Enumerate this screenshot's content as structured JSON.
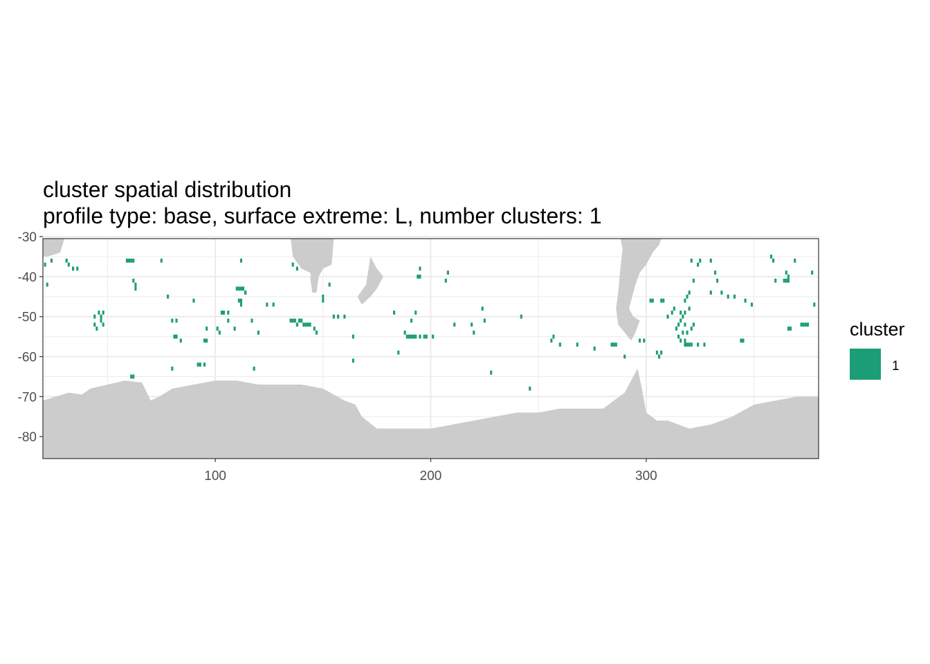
{
  "chart_data": {
    "type": "heatmap",
    "title": "cluster spatial distribution",
    "subtitle": "profile type: base, surface extreme: L, number clusters: 1",
    "xlabel": "",
    "ylabel": "",
    "xlim": [
      20,
      380
    ],
    "ylim": [
      -85.5,
      -30.5
    ],
    "x_ticks": [
      100,
      200,
      300
    ],
    "x_tick_labels": [
      "100",
      "200",
      "300"
    ],
    "y_ticks": [
      -30,
      -40,
      -50,
      -60,
      -70,
      -80
    ],
    "y_tick_labels": [
      "-30",
      "-40",
      "-50",
      "-60",
      "-70",
      "-80"
    ],
    "grid": true,
    "theme": "bw",
    "cell_size": [
      1,
      1
    ],
    "land_color": "#cccccc",
    "legend": {
      "title": "cluster",
      "position": "right",
      "entries": [
        {
          "label": "1",
          "color": "#1b9e77"
        }
      ]
    },
    "land_profile": {
      "antarctica_north_edge": [
        [
          20,
          -71
        ],
        [
          26,
          -70
        ],
        [
          32,
          -69
        ],
        [
          38,
          -69.5
        ],
        [
          42,
          -68
        ],
        [
          50,
          -67
        ],
        [
          58,
          -66
        ],
        [
          66,
          -66.5
        ],
        [
          70,
          -71
        ],
        [
          74,
          -70
        ],
        [
          80,
          -68
        ],
        [
          90,
          -67
        ],
        [
          100,
          -66
        ],
        [
          110,
          -66
        ],
        [
          120,
          -67
        ],
        [
          130,
          -67
        ],
        [
          140,
          -67
        ],
        [
          150,
          -68
        ],
        [
          160,
          -71
        ],
        [
          165,
          -72
        ],
        [
          168,
          -75
        ],
        [
          175,
          -78
        ],
        [
          185,
          -78
        ],
        [
          200,
          -78
        ],
        [
          210,
          -77
        ],
        [
          220,
          -76
        ],
        [
          230,
          -75
        ],
        [
          240,
          -74
        ],
        [
          250,
          -74
        ],
        [
          260,
          -73
        ],
        [
          270,
          -73
        ],
        [
          280,
          -73
        ],
        [
          285,
          -71
        ],
        [
          290,
          -69
        ],
        [
          294,
          -65
        ],
        [
          296,
          -63
        ],
        [
          298,
          -68
        ],
        [
          300,
          -74
        ],
        [
          305,
          -76
        ],
        [
          310,
          -76
        ],
        [
          315,
          -77
        ],
        [
          320,
          -78
        ],
        [
          330,
          -77
        ],
        [
          340,
          -75
        ],
        [
          350,
          -72
        ],
        [
          360,
          -71
        ],
        [
          370,
          -70
        ],
        [
          380,
          -70
        ]
      ],
      "landmasses": [
        {
          "name": "africa",
          "points": [
            [
              20,
              -30.5
            ],
            [
              30,
              -30.5
            ],
            [
              28,
              -34
            ],
            [
              22,
              -35
            ],
            [
              20,
              -35
            ]
          ]
        },
        {
          "name": "australia",
          "points": [
            [
              135,
              -30.5
            ],
            [
              155,
              -30.5
            ],
            [
              154,
              -37
            ],
            [
              150,
              -38
            ],
            [
              148,
              -40
            ],
            [
              146,
              -43
            ],
            [
              144,
              -39
            ],
            [
              140,
              -38
            ],
            [
              136,
              -35
            ]
          ]
        },
        {
          "name": "new-zealand",
          "points": [
            [
              172,
              -35
            ],
            [
              175,
              -38
            ],
            [
              178,
              -40
            ],
            [
              175,
              -43
            ],
            [
              172,
              -45
            ],
            [
              168,
              -47
            ],
            [
              166,
              -45
            ],
            [
              170,
              -42
            ]
          ]
        },
        {
          "name": "south-america",
          "points": [
            [
              288,
              -30.5
            ],
            [
              307,
              -30.5
            ],
            [
              306,
              -32
            ],
            [
              303,
              -34
            ],
            [
              300,
              -37
            ],
            [
              297,
              -39
            ],
            [
              295,
              -42
            ],
            [
              293,
              -46
            ],
            [
              292,
              -48
            ],
            [
              294,
              -50
            ],
            [
              297,
              -51
            ],
            [
              295,
              -54
            ],
            [
              293,
              -56
            ],
            [
              290,
              -54
            ],
            [
              287,
              -52
            ],
            [
              286,
              -48
            ],
            [
              287,
              -44
            ],
            [
              288,
              -38
            ],
            [
              289,
              -33
            ]
          ]
        },
        {
          "name": "tasmania-south",
          "points": [
            [
              144,
              -40
            ],
            [
              148,
              -40
            ],
            [
              147,
              -44
            ],
            [
              145,
              -44
            ]
          ]
        }
      ]
    },
    "cluster_cells": {
      "cluster": "1",
      "color": "#1b9e77",
      "points": [
        [
          21,
          -37
        ],
        [
          22,
          -42
        ],
        [
          24,
          -36
        ],
        [
          31,
          -36
        ],
        [
          32,
          -37
        ],
        [
          34,
          -38
        ],
        [
          36,
          -38
        ],
        [
          44,
          -50
        ],
        [
          44,
          -52
        ],
        [
          45,
          -53
        ],
        [
          46,
          -49
        ],
        [
          47,
          -50
        ],
        [
          47,
          -51
        ],
        [
          48,
          -52
        ],
        [
          48,
          -49
        ],
        [
          59,
          -36
        ],
        [
          60,
          -36
        ],
        [
          61,
          -36
        ],
        [
          62,
          -36
        ],
        [
          62,
          -41
        ],
        [
          63,
          -42
        ],
        [
          63,
          -43
        ],
        [
          61,
          -65
        ],
        [
          62,
          -65
        ],
        [
          75,
          -36
        ],
        [
          78,
          -45
        ],
        [
          80,
          -51
        ],
        [
          82,
          -51
        ],
        [
          81,
          -55
        ],
        [
          82,
          -55
        ],
        [
          84,
          -56
        ],
        [
          80,
          -63
        ],
        [
          90,
          -46
        ],
        [
          92,
          -62
        ],
        [
          93,
          -62
        ],
        [
          95,
          -62
        ],
        [
          95,
          -56
        ],
        [
          96,
          -56
        ],
        [
          96,
          -53
        ],
        [
          101,
          -53
        ],
        [
          102,
          -54
        ],
        [
          103,
          -49
        ],
        [
          104,
          -49
        ],
        [
          106,
          -49
        ],
        [
          106,
          -51
        ],
        [
          109,
          -53
        ],
        [
          110,
          -43
        ],
        [
          111,
          -43
        ],
        [
          112,
          -43
        ],
        [
          113,
          -43
        ],
        [
          114,
          -44
        ],
        [
          111,
          -46
        ],
        [
          112,
          -46
        ],
        [
          112,
          -47
        ],
        [
          112,
          -36
        ],
        [
          114,
          -44
        ],
        [
          117,
          -51
        ],
        [
          118,
          -63
        ],
        [
          120,
          -54
        ],
        [
          124,
          -47
        ],
        [
          127,
          -47
        ],
        [
          135,
          -51
        ],
        [
          136,
          -51
        ],
        [
          137,
          -51
        ],
        [
          138,
          -52
        ],
        [
          139,
          -51
        ],
        [
          140,
          -51
        ],
        [
          141,
          -52
        ],
        [
          142,
          -52
        ],
        [
          143,
          -52
        ],
        [
          144,
          -52
        ],
        [
          146,
          -53
        ],
        [
          147,
          -54
        ],
        [
          136,
          -37
        ],
        [
          138,
          -38
        ],
        [
          150,
          -46
        ],
        [
          150,
          -45
        ],
        [
          153,
          -42
        ],
        [
          155,
          -50
        ],
        [
          157,
          -50
        ],
        [
          160,
          -50
        ],
        [
          164,
          -55
        ],
        [
          164,
          -61
        ],
        [
          183,
          -49
        ],
        [
          185,
          -59
        ],
        [
          188,
          -54
        ],
        [
          189,
          -55
        ],
        [
          190,
          -55
        ],
        [
          191,
          -55
        ],
        [
          192,
          -55
        ],
        [
          193,
          -55
        ],
        [
          195,
          -55
        ],
        [
          191,
          -51
        ],
        [
          193,
          -49
        ],
        [
          194,
          -40
        ],
        [
          195,
          -38
        ],
        [
          195,
          -40
        ],
        [
          197,
          -55
        ],
        [
          198,
          -55
        ],
        [
          201,
          -55
        ],
        [
          207,
          -41
        ],
        [
          208,
          -39
        ],
        [
          211,
          -52
        ],
        [
          219,
          -52
        ],
        [
          220,
          -54
        ],
        [
          224,
          -48
        ],
        [
          225,
          -51
        ],
        [
          228,
          -64
        ],
        [
          242,
          -50
        ],
        [
          246,
          -68
        ],
        [
          256,
          -56
        ],
        [
          257,
          -55
        ],
        [
          260,
          -57
        ],
        [
          268,
          -57
        ],
        [
          276,
          -58
        ],
        [
          284,
          -57
        ],
        [
          285,
          -57
        ],
        [
          286,
          -57
        ],
        [
          290,
          -60
        ],
        [
          297,
          -56
        ],
        [
          299,
          -56
        ],
        [
          302,
          -46
        ],
        [
          303,
          -46
        ],
        [
          305,
          -59
        ],
        [
          306,
          -60
        ],
        [
          307,
          -59
        ],
        [
          307,
          -46
        ],
        [
          308,
          -46
        ],
        [
          310,
          -50
        ],
        [
          312,
          -49
        ],
        [
          313,
          -48
        ],
        [
          314,
          -53
        ],
        [
          315,
          -52
        ],
        [
          316,
          -49
        ],
        [
          316,
          -51
        ],
        [
          317,
          -50
        ],
        [
          318,
          -46
        ],
        [
          318,
          -52
        ],
        [
          318,
          -49
        ],
        [
          319,
          -45
        ],
        [
          320,
          -44
        ],
        [
          320,
          -48
        ],
        [
          321,
          -53
        ],
        [
          322,
          -52
        ],
        [
          318,
          -56
        ],
        [
          318,
          -57
        ],
        [
          319,
          -54
        ],
        [
          315,
          -55
        ],
        [
          316,
          -56
        ],
        [
          317,
          -54
        ],
        [
          319,
          -57
        ],
        [
          320,
          -57
        ],
        [
          321,
          -57
        ],
        [
          324,
          -57
        ],
        [
          327,
          -57
        ],
        [
          322,
          -41
        ],
        [
          321,
          -36
        ],
        [
          324,
          -37
        ],
        [
          325,
          -36
        ],
        [
          330,
          -36
        ],
        [
          332,
          -39
        ],
        [
          333,
          -41
        ],
        [
          330,
          -44
        ],
        [
          335,
          -44
        ],
        [
          338,
          -45
        ],
        [
          341,
          -45
        ],
        [
          344,
          -56
        ],
        [
          345,
          -56
        ],
        [
          346,
          -46
        ],
        [
          349,
          -47
        ],
        [
          358,
          -35
        ],
        [
          359,
          -36
        ],
        [
          360,
          -41
        ],
        [
          364,
          -41
        ],
        [
          365,
          -41
        ],
        [
          366,
          -41
        ],
        [
          365,
          -39
        ],
        [
          366,
          -40
        ],
        [
          366,
          -53
        ],
        [
          367,
          -53
        ],
        [
          369,
          -36
        ],
        [
          372,
          -52
        ],
        [
          373,
          -52
        ],
        [
          374,
          -52
        ],
        [
          375,
          -52
        ],
        [
          377,
          -39
        ],
        [
          378,
          -47
        ]
      ]
    }
  }
}
